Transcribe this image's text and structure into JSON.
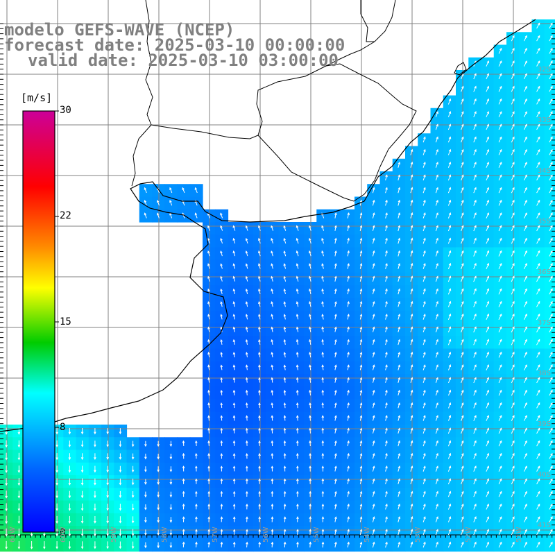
{
  "header": {
    "line1": "modelo GEFS-WAVE (NCEP)",
    "line2": "forecast date: 2025-03-10 00:00:00",
    "line3": "valid date: 2025-03-10 03:00:00"
  },
  "colorbar": {
    "unit": "[m/s]",
    "ticks": [
      "30",
      "22",
      "15",
      "8",
      "0"
    ],
    "colors": [
      "#cc0099",
      "#ff0000",
      "#ff8800",
      "#ffff00",
      "#00cc00",
      "#00ffff",
      "#0066ff",
      "#0000ff"
    ]
  },
  "grid": {
    "lat_labels": [
      "32S",
      "33S",
      "34S",
      "35S",
      "36S",
      "37S",
      "38S",
      "39S",
      "40S",
      "41S"
    ],
    "lon_labels": [
      "61W",
      "60W",
      "59W",
      "58W",
      "57W",
      "56W",
      "55W",
      "54W",
      "53W",
      "52W",
      "51W"
    ]
  },
  "map_colors": {
    "land": "#ffffff",
    "coast": "#000000",
    "grid": "#808080",
    "arrows": "#ffffff"
  }
}
